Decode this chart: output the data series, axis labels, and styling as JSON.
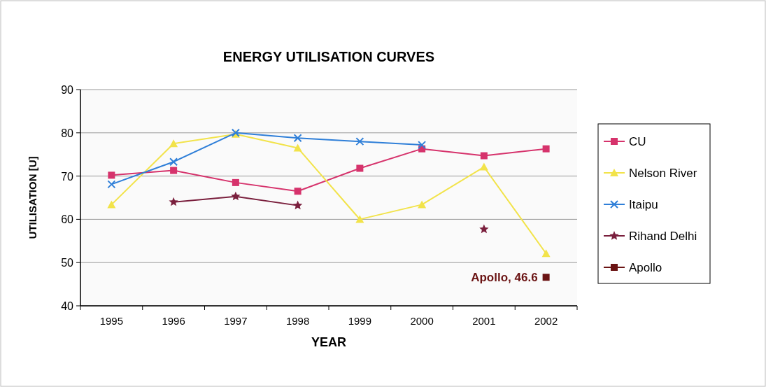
{
  "chart_data": {
    "type": "line",
    "title": "ENERGY UTILISATION CURVES",
    "xlabel": "YEAR",
    "ylabel": "UTILISATION [U]",
    "categories": [
      "1995",
      "1996",
      "1997",
      "1998",
      "1999",
      "2000",
      "2001",
      "2002"
    ],
    "series": [
      {
        "name": "CU",
        "color": "#d6336c",
        "marker": "square",
        "values": [
          70.2,
          71.3,
          68.5,
          66.5,
          71.8,
          76.3,
          74.7,
          76.3
        ]
      },
      {
        "name": "Nelson River",
        "color": "#f2e34a",
        "marker": "triangle",
        "values": [
          63.4,
          77.5,
          79.7,
          76.5,
          60,
          63.4,
          72.1,
          52.1
        ]
      },
      {
        "name": "Itaipu",
        "color": "#2f7fd8",
        "marker": "cross",
        "values": [
          68.1,
          73.3,
          80,
          78.8,
          78,
          77.2,
          null,
          null
        ]
      },
      {
        "name": "Rihand Delhi",
        "color": "#7a1f3d",
        "marker": "star",
        "values": [
          null,
          64,
          65.3,
          63.2,
          null,
          null,
          57.7,
          null
        ]
      },
      {
        "name": "Apollo",
        "color": "#6b1414",
        "marker": "square",
        "values": [
          null,
          null,
          null,
          null,
          null,
          null,
          null,
          46.6
        ],
        "value_labels": [
          null,
          null,
          null,
          null,
          null,
          null,
          null,
          "Apollo, 46.6"
        ]
      }
    ],
    "ylim": [
      40,
      90
    ],
    "yticks": [
      40,
      50,
      60,
      70,
      80,
      90
    ],
    "grid": "y",
    "legend": "right"
  }
}
